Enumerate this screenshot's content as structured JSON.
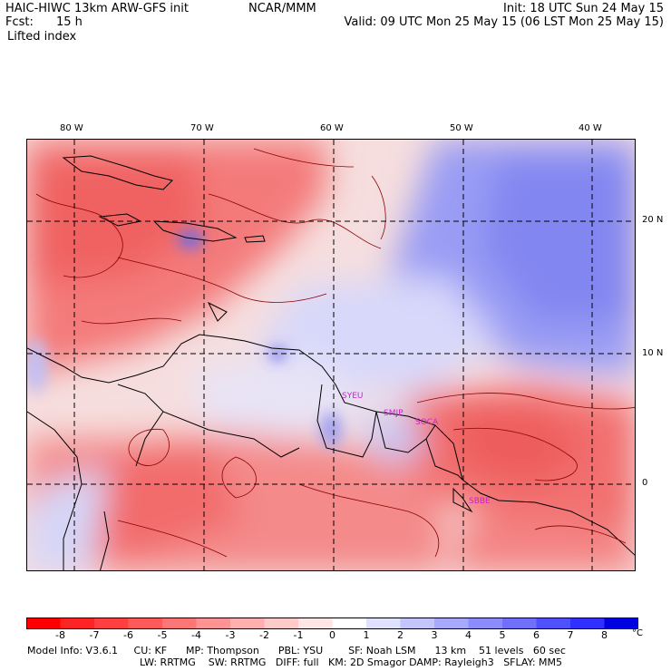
{
  "header": {
    "title": "HAIC-HIWC 13km ARW-GFS init",
    "org": "NCAR/MMM",
    "init": "Init: 18 UTC Sun 24 May 15",
    "fcst_label": "Fcst:",
    "fcst_value": "15 h",
    "valid": "Valid: 09 UTC Mon 25 May 15 (06 LST Mon 25 May 15)",
    "field": "Lifted index"
  },
  "map": {
    "lon_labels": [
      "80 W",
      "70 W",
      "60 W",
      "50 W",
      "40 W"
    ],
    "lat_labels": [
      "20 N",
      "10 N",
      "0"
    ],
    "stations": [
      "SYEU",
      "SMJP",
      "SOCA",
      "SBBE"
    ]
  },
  "colorbar": {
    "unit": "°C",
    "ticks": [
      "-8",
      "-7",
      "-6",
      "-5",
      "-4",
      "-3",
      "-2",
      "-1",
      "0",
      "1",
      "2",
      "3",
      "4",
      "5",
      "6",
      "7",
      "8"
    ],
    "colors": [
      "#ff0000",
      "#ff2424",
      "#ff4040",
      "#ff5a5a",
      "#ff7676",
      "#ff9292",
      "#ffafaf",
      "#ffcaca",
      "#ffe6e6",
      "#ffffff",
      "#e0e0ff",
      "#c4c4ff",
      "#a8a8ff",
      "#8c8cff",
      "#7070ff",
      "#5050ff",
      "#3030ff",
      "#0000e0"
    ]
  },
  "model_info": {
    "line1": "Model Info: V3.6.1     CU: KF      MP: Thompson      PBL: YSU        SF: Noah LSM      13 km    51 levels   60 sec",
    "line2": "LW: RRTMG    SW: RRTMG   DIFF: full   KM: 2D Smagor DAMP: Rayleigh3   SFLAY: MM5"
  }
}
